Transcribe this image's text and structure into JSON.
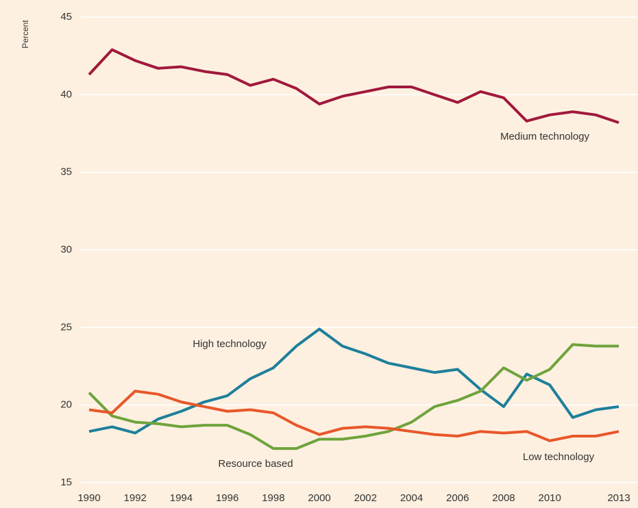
{
  "chart_data": {
    "type": "line",
    "y_label": "Percent",
    "x": [
      1990,
      1991,
      1992,
      1993,
      1994,
      1995,
      1996,
      1997,
      1998,
      1999,
      2000,
      2001,
      2002,
      2003,
      2004,
      2005,
      2006,
      2007,
      2008,
      2009,
      2010,
      2011,
      2012,
      2013
    ],
    "xlim": [
      1990,
      2013
    ],
    "xticks": [
      1990,
      1992,
      1994,
      1996,
      1998,
      2000,
      2002,
      2004,
      2006,
      2008,
      2010,
      2013
    ],
    "ylim": [
      15,
      45
    ],
    "yticks": [
      15,
      20,
      25,
      30,
      35,
      40,
      45
    ],
    "grid": true,
    "series": [
      {
        "name": "Medium technology",
        "color": "#a0193c",
        "values": [
          41.3,
          42.9,
          42.2,
          41.7,
          41.8,
          41.5,
          41.3,
          40.6,
          41.0,
          40.4,
          39.4,
          39.9,
          40.2,
          40.5,
          40.5,
          40.0,
          39.5,
          40.2,
          39.8,
          38.3,
          38.7,
          38.9,
          38.7,
          38.2
        ]
      },
      {
        "name": "High technology",
        "color": "#1e7f9a",
        "values": [
          18.3,
          18.6,
          18.2,
          19.1,
          19.6,
          20.2,
          20.6,
          21.7,
          22.4,
          23.8,
          24.9,
          23.8,
          23.3,
          22.7,
          22.4,
          22.1,
          22.3,
          21.0,
          19.9,
          22.0,
          21.3,
          19.2,
          19.7,
          19.9
        ]
      },
      {
        "name": "Resource based",
        "color": "#6fa33c",
        "values": [
          20.8,
          19.3,
          18.9,
          18.8,
          18.6,
          18.7,
          18.7,
          18.1,
          17.2,
          17.2,
          17.8,
          17.8,
          18.0,
          18.3,
          18.9,
          19.9,
          20.3,
          20.9,
          22.4,
          21.6,
          22.3,
          23.9,
          23.8,
          23.8
        ]
      },
      {
        "name": "Low technology",
        "color": "#e8572a",
        "values": [
          19.7,
          19.5,
          20.9,
          20.7,
          20.2,
          19.9,
          19.6,
          19.7,
          19.5,
          18.7,
          18.1,
          18.5,
          18.6,
          18.5,
          18.3,
          18.1,
          18.0,
          18.3,
          18.2,
          18.3,
          17.7,
          18.0,
          18.0,
          18.3
        ]
      }
    ]
  }
}
